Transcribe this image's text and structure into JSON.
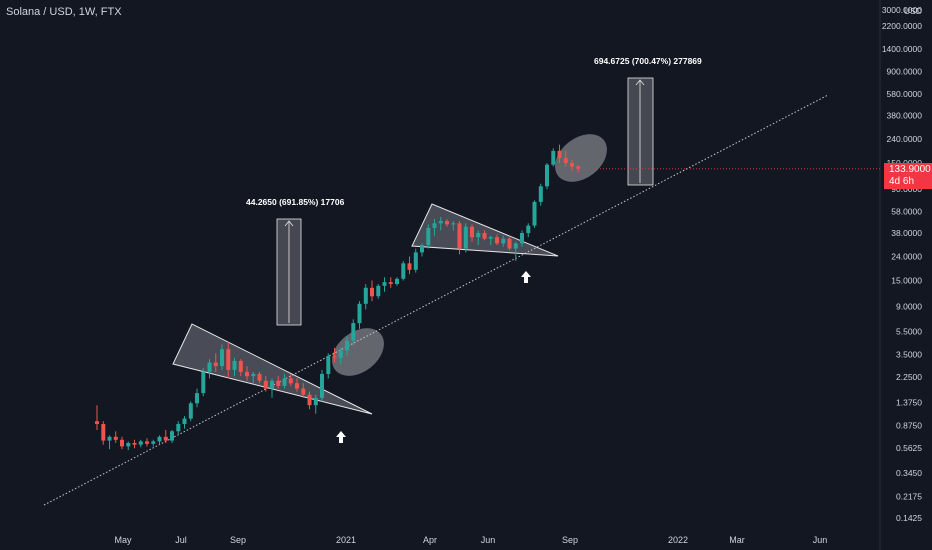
{
  "header": {
    "title": "Solana / USD, 1W, FTX"
  },
  "price_tag": {
    "price": "133.9000",
    "countdown": "4d 6h"
  },
  "chart_data": {
    "type": "candlestick",
    "symbol": "Solana / USD",
    "interval": "1W",
    "exchange": "FTX",
    "scale": "log",
    "y_ticks": [
      "3000.0000",
      "2200.0000",
      "1400.0000",
      "900.0000",
      "580.0000",
      "380.0000",
      "240.0000",
      "150.0000",
      "90.0000",
      "58.0000",
      "38.0000",
      "24.0000",
      "15.0000",
      "9.0000",
      "5.5000",
      "3.5000",
      "2.2500",
      "1.3750",
      "0.8750",
      "0.5625",
      "0.3450",
      "0.2175",
      "0.1425"
    ],
    "y_unit": "USD",
    "x_ticks": [
      "May",
      "Jul",
      "Sep",
      "2021",
      "Apr",
      "Jun",
      "Sep",
      "2022",
      "Mar",
      "Jun"
    ],
    "current_price": 133.9,
    "candles": [
      {
        "o": 0.95,
        "h": 1.3,
        "l": 0.8,
        "c": 0.9
      },
      {
        "o": 0.9,
        "h": 0.95,
        "l": 0.6,
        "c": 0.65
      },
      {
        "o": 0.65,
        "h": 0.72,
        "l": 0.55,
        "c": 0.7
      },
      {
        "o": 0.7,
        "h": 0.78,
        "l": 0.62,
        "c": 0.66
      },
      {
        "o": 0.66,
        "h": 0.7,
        "l": 0.55,
        "c": 0.58
      },
      {
        "o": 0.58,
        "h": 0.64,
        "l": 0.54,
        "c": 0.62
      },
      {
        "o": 0.62,
        "h": 0.66,
        "l": 0.56,
        "c": 0.6
      },
      {
        "o": 0.6,
        "h": 0.66,
        "l": 0.57,
        "c": 0.64
      },
      {
        "o": 0.64,
        "h": 0.68,
        "l": 0.58,
        "c": 0.61
      },
      {
        "o": 0.61,
        "h": 0.66,
        "l": 0.58,
        "c": 0.64
      },
      {
        "o": 0.64,
        "h": 0.72,
        "l": 0.6,
        "c": 0.7
      },
      {
        "o": 0.7,
        "h": 0.8,
        "l": 0.62,
        "c": 0.65
      },
      {
        "o": 0.65,
        "h": 0.8,
        "l": 0.62,
        "c": 0.78
      },
      {
        "o": 0.78,
        "h": 0.95,
        "l": 0.72,
        "c": 0.9
      },
      {
        "o": 0.9,
        "h": 1.05,
        "l": 0.82,
        "c": 1.0
      },
      {
        "o": 1.0,
        "h": 1.4,
        "l": 0.95,
        "c": 1.35
      },
      {
        "o": 1.35,
        "h": 1.8,
        "l": 1.25,
        "c": 1.65
      },
      {
        "o": 1.65,
        "h": 2.7,
        "l": 1.55,
        "c": 2.5
      },
      {
        "o": 2.5,
        "h": 3.2,
        "l": 2.2,
        "c": 3.0
      },
      {
        "o": 3.0,
        "h": 3.6,
        "l": 2.5,
        "c": 2.8
      },
      {
        "o": 2.8,
        "h": 4.3,
        "l": 2.6,
        "c": 3.9
      },
      {
        "o": 3.9,
        "h": 4.5,
        "l": 2.2,
        "c": 2.6
      },
      {
        "o": 2.6,
        "h": 3.3,
        "l": 2.3,
        "c": 3.1
      },
      {
        "o": 3.1,
        "h": 3.2,
        "l": 2.3,
        "c": 2.5
      },
      {
        "o": 2.5,
        "h": 2.8,
        "l": 2.1,
        "c": 2.3
      },
      {
        "o": 2.3,
        "h": 2.5,
        "l": 2.0,
        "c": 2.4
      },
      {
        "o": 2.4,
        "h": 2.5,
        "l": 2.0,
        "c": 2.1
      },
      {
        "o": 2.1,
        "h": 2.3,
        "l": 1.7,
        "c": 1.8
      },
      {
        "o": 1.8,
        "h": 2.2,
        "l": 1.5,
        "c": 2.1
      },
      {
        "o": 2.1,
        "h": 2.3,
        "l": 1.8,
        "c": 1.9
      },
      {
        "o": 1.9,
        "h": 2.4,
        "l": 1.8,
        "c": 2.2
      },
      {
        "o": 2.2,
        "h": 2.4,
        "l": 1.9,
        "c": 2.0
      },
      {
        "o": 2.0,
        "h": 2.2,
        "l": 1.7,
        "c": 1.8
      },
      {
        "o": 1.8,
        "h": 2.0,
        "l": 1.5,
        "c": 1.6
      },
      {
        "o": 1.6,
        "h": 1.7,
        "l": 1.2,
        "c": 1.3
      },
      {
        "o": 1.3,
        "h": 1.6,
        "l": 1.1,
        "c": 1.5
      },
      {
        "o": 1.5,
        "h": 2.6,
        "l": 1.4,
        "c": 2.4
      },
      {
        "o": 2.4,
        "h": 3.6,
        "l": 2.2,
        "c": 3.4
      },
      {
        "o": 3.4,
        "h": 4.0,
        "l": 3.0,
        "c": 3.3
      },
      {
        "o": 3.3,
        "h": 4.0,
        "l": 2.9,
        "c": 3.8
      },
      {
        "o": 3.8,
        "h": 5.0,
        "l": 3.4,
        "c": 4.6
      },
      {
        "o": 4.6,
        "h": 7.0,
        "l": 4.2,
        "c": 6.5
      },
      {
        "o": 6.5,
        "h": 10.0,
        "l": 5.8,
        "c": 9.5
      },
      {
        "o": 9.5,
        "h": 14.0,
        "l": 8.5,
        "c": 13.0
      },
      {
        "o": 13.0,
        "h": 15.0,
        "l": 10.0,
        "c": 11.0
      },
      {
        "o": 11.0,
        "h": 14.0,
        "l": 10.5,
        "c": 13.5
      },
      {
        "o": 13.5,
        "h": 16.0,
        "l": 12.0,
        "c": 14.5
      },
      {
        "o": 14.5,
        "h": 16.0,
        "l": 13.0,
        "c": 14.0
      },
      {
        "o": 14.0,
        "h": 16.0,
        "l": 13.5,
        "c": 15.5
      },
      {
        "o": 15.5,
        "h": 22.0,
        "l": 15.0,
        "c": 21.0
      },
      {
        "o": 21.0,
        "h": 24.0,
        "l": 17.0,
        "c": 18.5
      },
      {
        "o": 18.5,
        "h": 28.0,
        "l": 17.5,
        "c": 26.0
      },
      {
        "o": 26.0,
        "h": 31.0,
        "l": 24.0,
        "c": 30.0
      },
      {
        "o": 30.0,
        "h": 45.0,
        "l": 28.0,
        "c": 42.0
      },
      {
        "o": 42.0,
        "h": 50.0,
        "l": 36.0,
        "c": 46.0
      },
      {
        "o": 46.0,
        "h": 52.0,
        "l": 40.0,
        "c": 48.0
      },
      {
        "o": 48.0,
        "h": 50.0,
        "l": 43.0,
        "c": 45.0
      },
      {
        "o": 45.0,
        "h": 48.0,
        "l": 40.0,
        "c": 46.0
      },
      {
        "o": 46.0,
        "h": 48.0,
        "l": 25.0,
        "c": 28.0
      },
      {
        "o": 28.0,
        "h": 46.0,
        "l": 26.0,
        "c": 43.0
      },
      {
        "o": 43.0,
        "h": 45.0,
        "l": 32.0,
        "c": 35.0
      },
      {
        "o": 35.0,
        "h": 40.0,
        "l": 30.0,
        "c": 38.0
      },
      {
        "o": 38.0,
        "h": 40.0,
        "l": 33.0,
        "c": 34.0
      },
      {
        "o": 34.0,
        "h": 36.0,
        "l": 30.0,
        "c": 35.0
      },
      {
        "o": 35.0,
        "h": 37.0,
        "l": 30.0,
        "c": 31.0
      },
      {
        "o": 31.0,
        "h": 36.0,
        "l": 29.0,
        "c": 34.0
      },
      {
        "o": 34.0,
        "h": 35.0,
        "l": 27.0,
        "c": 28.0
      },
      {
        "o": 28.0,
        "h": 32.0,
        "l": 22.0,
        "c": 31.0
      },
      {
        "o": 31.0,
        "h": 40.0,
        "l": 29.0,
        "c": 38.0
      },
      {
        "o": 38.0,
        "h": 46.0,
        "l": 35.0,
        "c": 44.0
      },
      {
        "o": 44.0,
        "h": 72.0,
        "l": 42.0,
        "c": 70.0
      },
      {
        "o": 70.0,
        "h": 100.0,
        "l": 65.0,
        "c": 95.0
      },
      {
        "o": 95.0,
        "h": 150.0,
        "l": 90.0,
        "c": 145.0
      },
      {
        "o": 145.0,
        "h": 200.0,
        "l": 140.0,
        "c": 190.0
      },
      {
        "o": 190.0,
        "h": 215.0,
        "l": 150.0,
        "c": 165.0
      },
      {
        "o": 165.0,
        "h": 190.0,
        "l": 140.0,
        "c": 150.0
      },
      {
        "o": 150.0,
        "h": 160.0,
        "l": 128.0,
        "c": 140.0
      },
      {
        "o": 140.0,
        "h": 145.0,
        "l": 125.0,
        "c": 133.9
      }
    ],
    "annotations": [
      {
        "type": "measure",
        "label": "44.2650 (691.85%) 17706"
      },
      {
        "type": "measure",
        "label": "694.6725 (700.47%) 277869"
      }
    ],
    "colors": {
      "up": "#26a69a",
      "down": "#ef5350",
      "background": "#131722",
      "axis_text": "#d1d4dc",
      "price_tag": "#f23645"
    }
  }
}
